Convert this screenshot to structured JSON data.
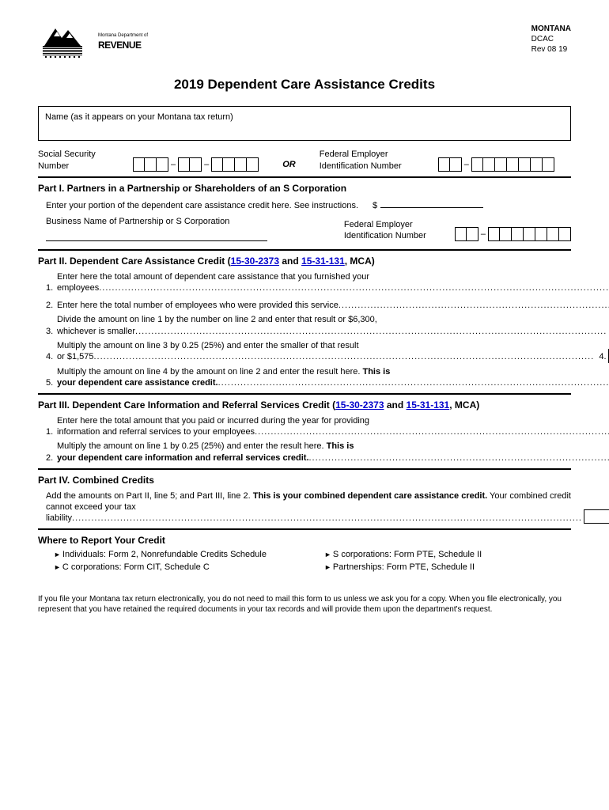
{
  "header": {
    "dept_small": "Montana Department of",
    "dept_big": "REVENUE",
    "state": "MONTANA",
    "code": "DCAC",
    "rev": "Rev 08 19"
  },
  "title": "2019 Dependent Care Assistance Credits",
  "name_label": "Name (as it appears on your Montana tax return)",
  "ssn_label": "Social Security Number",
  "or": "OR",
  "fein_label": "Federal Employer Identification Number",
  "part1": {
    "hdr": "Part I. Partners in a Partnership or Shareholders of an S Corporation",
    "line1": "Enter your portion of the dependent care assistance credit here. See instructions.",
    "dollar": "$",
    "biz_label": "Business Name of Partnership or S Corporation",
    "fein_label": "Federal Employer Identification Number"
  },
  "part2": {
    "hdr_a": "Part II. Dependent Care Assistance Credit (",
    "link1": "15-30-2373",
    "mid": " and ",
    "link2": "15-31-131",
    "hdr_b": ", MCA)",
    "items": [
      {
        "n": "1.",
        "a": "Enter here the total amount of dependent care assistance that you furnished your",
        "b": "employees",
        "ln": "1."
      },
      {
        "n": "2.",
        "a": "Enter here the total number of employees who were provided this service",
        "b": "",
        "ln": "2."
      },
      {
        "n": "3.",
        "a": "Divide the amount on line 1 by the number on line 2 and enter that result or $6,300,",
        "b": "whichever is smaller",
        "ln": "3."
      },
      {
        "n": "4.",
        "a": "Multiply the amount on line 3 by 0.25 (25%) and enter the smaller of that result",
        "b": "or $1,575",
        "ln": "4."
      },
      {
        "n": "5.",
        "a": "Multiply the amount on line 4 by the amount on line 2 and enter the result here. ",
        "bold": "This is your dependent care assistance credit.",
        "ln": "5."
      }
    ]
  },
  "part3": {
    "hdr_a": "Part III. Dependent Care Information and Referral Services Credit (",
    "link1": "15-30-2373",
    "mid": " and ",
    "link2": "15-31-131",
    "hdr_b": ", MCA)",
    "items": [
      {
        "n": "1.",
        "a": "Enter here the total amount that you paid or incurred during the year for providing",
        "b": "information and referral services to your employees",
        "ln": "1."
      },
      {
        "n": "2.",
        "a": "Multiply the amount on line 1 by 0.25 (25%) and enter the result here. ",
        "bold": "This is your dependent care information and referral services credit.",
        "ln": "2."
      }
    ]
  },
  "part4": {
    "hdr": "Part IV. Combined Credits",
    "a": "Add the amounts on Part II, line 5; and Part III, line 2. ",
    "bold": "This is your combined dependent care assistance credit.",
    "b": " Your combined credit cannot exceed your tax",
    "c": "liability"
  },
  "where": {
    "hdr": "Where to Report Your Credit",
    "items": [
      "Individuals: Form 2, Nonrefundable Credits Schedule",
      "S corporations: Form PTE, Schedule II",
      "C corporations: Form CIT, Schedule C",
      "Partnerships: Form PTE, Schedule II"
    ]
  },
  "footnote": "If you file your Montana tax return electronically, you do not need to mail this form to us unless we ask you for a copy. When you file electronically, you represent that you have retained the required documents in your tax records and will provide them upon the department's request."
}
